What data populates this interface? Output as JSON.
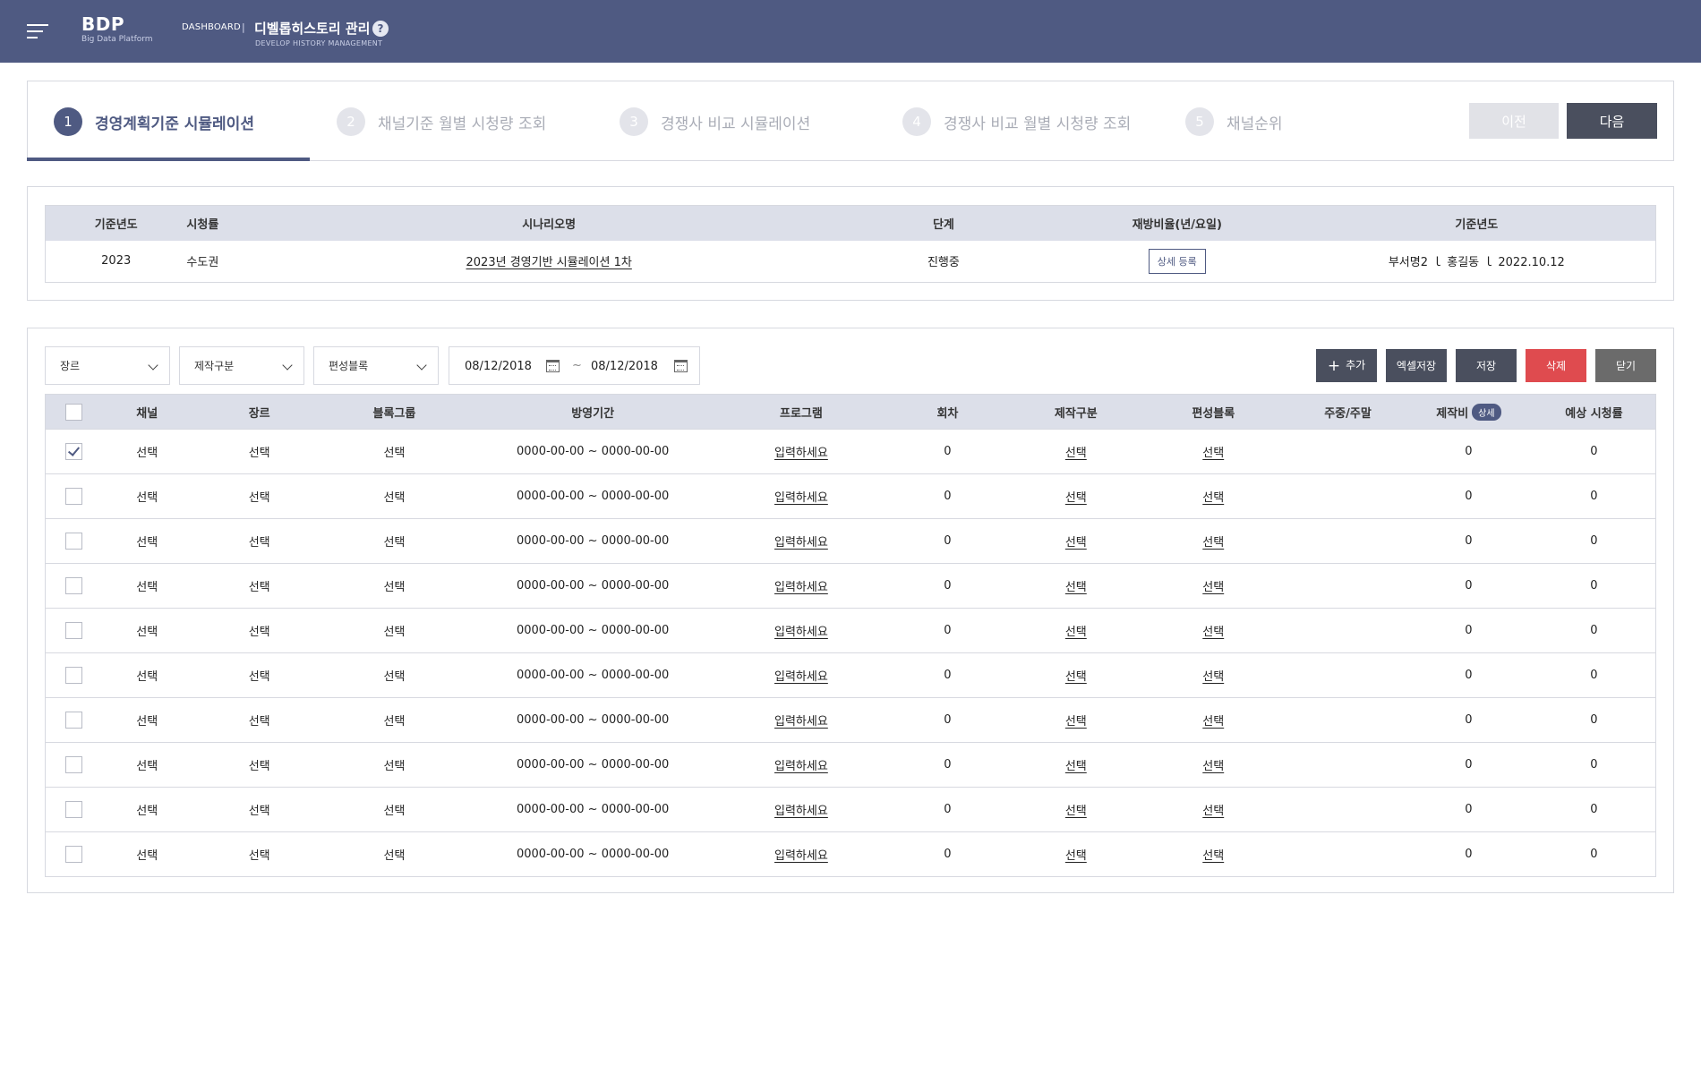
{
  "header": {
    "logo_main": "BDP",
    "logo_sub": "Big Data Platform",
    "crumb_dashboard": "DASHBOARD",
    "crumb_sep": "|",
    "title": "디벨롭히스토리 관리",
    "help_label": "?",
    "subtitle": "DEVELOP HISTORY MANAGEMENT"
  },
  "steps": [
    {
      "num": "1",
      "label": "경영계획기준 시뮬레이션",
      "active": true
    },
    {
      "num": "2",
      "label": "채널기준 월별 시청량 조회",
      "active": false
    },
    {
      "num": "3",
      "label": "경쟁사 비교 시뮬레이션",
      "active": false
    },
    {
      "num": "4",
      "label": "경쟁사 비교 월별 시청량 조회",
      "active": false
    },
    {
      "num": "5",
      "label": "채널순위",
      "active": false
    }
  ],
  "nav": {
    "prev": "이전",
    "next": "다음"
  },
  "info": {
    "headers": [
      "기준년도",
      "시청률",
      "시나리오명",
      "단계",
      "재방비율(년/요일)",
      "기준년도"
    ],
    "row": {
      "year": "2023",
      "rating": "수도권",
      "scenario": "2023년 경영기반 시뮬레이션 1차",
      "stage": "진행중",
      "rerun_button": "상세 등록",
      "meta": "부서명2 ｌ 홍길동 ｌ 2022.10.12"
    }
  },
  "filters": {
    "genre": "장르",
    "production": "제작구분",
    "block": "편성블록",
    "date_from": "08/12/2018",
    "date_sep": "~",
    "date_to": "08/12/2018"
  },
  "toolbar": {
    "add": "추가",
    "excel": "엑셀저장",
    "save": "저장",
    "delete": "삭제",
    "close": "닫기"
  },
  "table": {
    "columns": [
      "채널",
      "장르",
      "블록그룹",
      "방영기간",
      "프로그램",
      "회차",
      "제작구분",
      "편성블록",
      "주중/주말",
      "제작비",
      "예상 시청률"
    ],
    "cost_badge": "상세",
    "rows": [
      {
        "checked": true,
        "channel": "선택",
        "genre": "선택",
        "block_group": "선택",
        "period": "0000-00-00 ~ 0000-00-00",
        "program": "입력하세요",
        "episode": "0",
        "production": "선택",
        "block": "선택",
        "weekday": "",
        "cost": "0",
        "expected": "0"
      },
      {
        "checked": false,
        "channel": "선택",
        "genre": "선택",
        "block_group": "선택",
        "period": "0000-00-00 ~ 0000-00-00",
        "program": "입력하세요",
        "episode": "0",
        "production": "선택",
        "block": "선택",
        "weekday": "",
        "cost": "0",
        "expected": "0"
      },
      {
        "checked": false,
        "channel": "선택",
        "genre": "선택",
        "block_group": "선택",
        "period": "0000-00-00 ~ 0000-00-00",
        "program": "입력하세요",
        "episode": "0",
        "production": "선택",
        "block": "선택",
        "weekday": "",
        "cost": "0",
        "expected": "0"
      },
      {
        "checked": false,
        "channel": "선택",
        "genre": "선택",
        "block_group": "선택",
        "period": "0000-00-00 ~ 0000-00-00",
        "program": "입력하세요",
        "episode": "0",
        "production": "선택",
        "block": "선택",
        "weekday": "",
        "cost": "0",
        "expected": "0"
      },
      {
        "checked": false,
        "channel": "선택",
        "genre": "선택",
        "block_group": "선택",
        "period": "0000-00-00 ~ 0000-00-00",
        "program": "입력하세요",
        "episode": "0",
        "production": "선택",
        "block": "선택",
        "weekday": "",
        "cost": "0",
        "expected": "0"
      },
      {
        "checked": false,
        "channel": "선택",
        "genre": "선택",
        "block_group": "선택",
        "period": "0000-00-00 ~ 0000-00-00",
        "program": "입력하세요",
        "episode": "0",
        "production": "선택",
        "block": "선택",
        "weekday": "",
        "cost": "0",
        "expected": "0"
      },
      {
        "checked": false,
        "channel": "선택",
        "genre": "선택",
        "block_group": "선택",
        "period": "0000-00-00 ~ 0000-00-00",
        "program": "입력하세요",
        "episode": "0",
        "production": "선택",
        "block": "선택",
        "weekday": "",
        "cost": "0",
        "expected": "0"
      },
      {
        "checked": false,
        "channel": "선택",
        "genre": "선택",
        "block_group": "선택",
        "period": "0000-00-00 ~ 0000-00-00",
        "program": "입력하세요",
        "episode": "0",
        "production": "선택",
        "block": "선택",
        "weekday": "",
        "cost": "0",
        "expected": "0"
      },
      {
        "checked": false,
        "channel": "선택",
        "genre": "선택",
        "block_group": "선택",
        "period": "0000-00-00 ~ 0000-00-00",
        "program": "입력하세요",
        "episode": "0",
        "production": "선택",
        "block": "선택",
        "weekday": "",
        "cost": "0",
        "expected": "0"
      },
      {
        "checked": false,
        "channel": "선택",
        "genre": "선택",
        "block_group": "선택",
        "period": "0000-00-00 ~ 0000-00-00",
        "program": "입력하세요",
        "episode": "0",
        "production": "선택",
        "block": "선택",
        "weekday": "",
        "cost": "0",
        "expected": "0"
      }
    ]
  }
}
